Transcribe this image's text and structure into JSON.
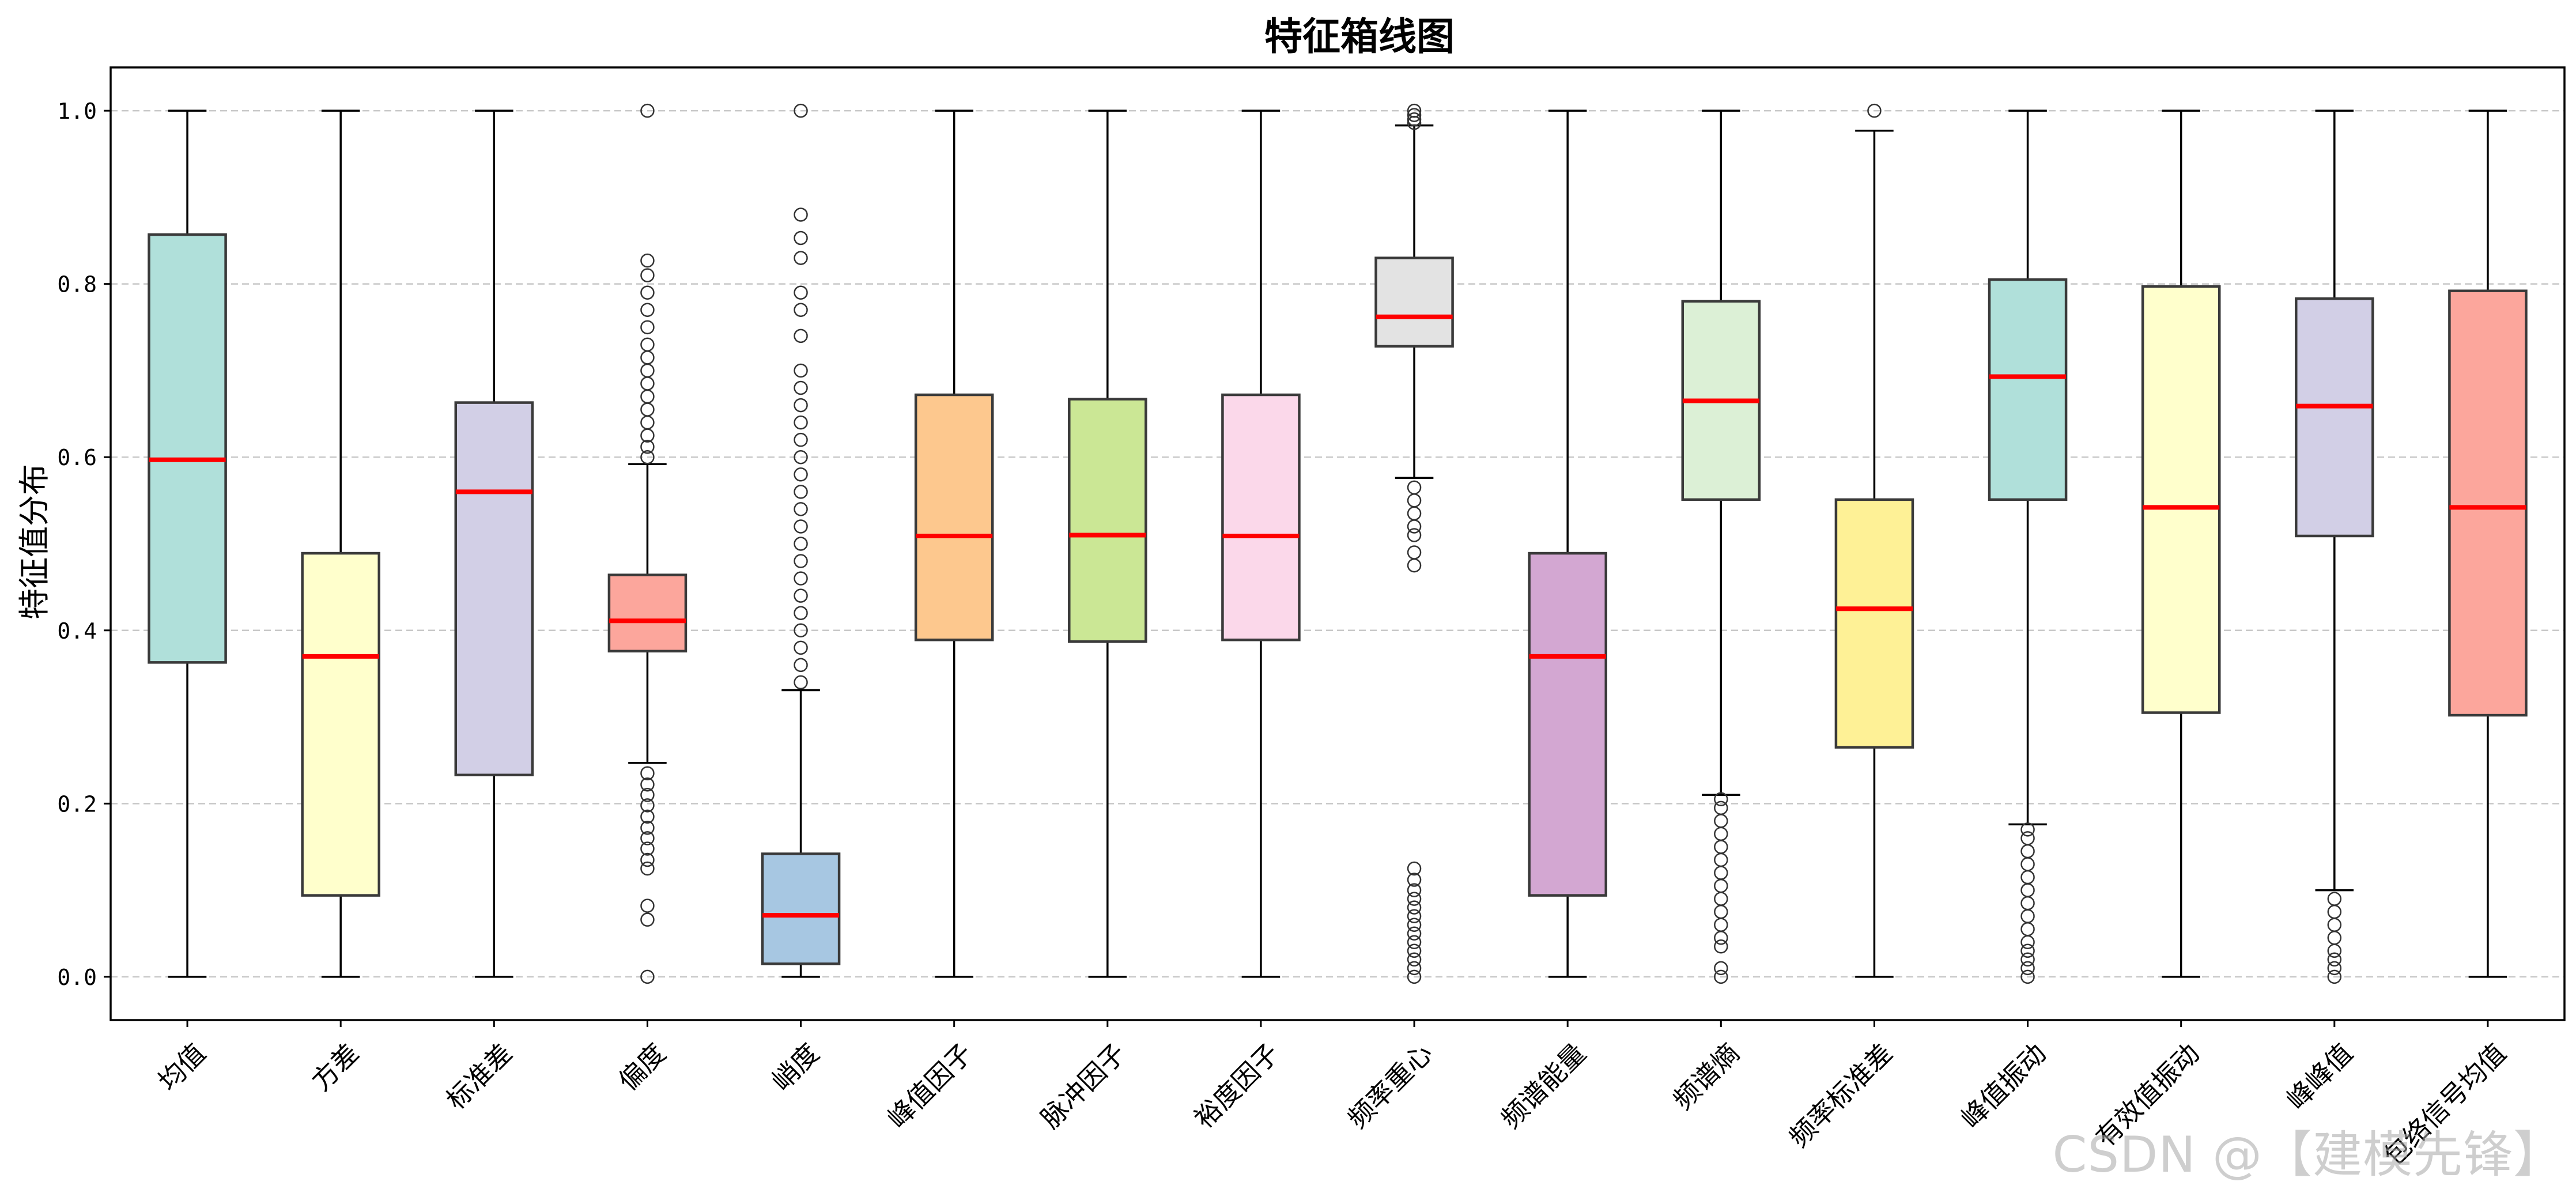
{
  "chart_data": {
    "type": "box",
    "title": "特征箱线图",
    "xlabel": "",
    "ylabel": "特征值分布",
    "ylim": [
      -0.05,
      1.05
    ],
    "yticks": [
      0.0,
      0.2,
      0.4,
      0.6,
      0.8,
      1.0
    ],
    "ytick_labels": [
      "0.0",
      "0.2",
      "0.4",
      "0.6",
      "0.8",
      "1.0"
    ],
    "grid": "horizontal dashed",
    "median_color": "#ff0000",
    "categories": [
      "均值",
      "方差",
      "标准差",
      "偏度",
      "峭度",
      "峰值因子",
      "脉冲因子",
      "裕度因子",
      "频率重心",
      "频谱能量",
      "频谱熵",
      "频率标准差",
      "峰值振动",
      "有效值振动",
      "峰峰值",
      "包络信号均值"
    ],
    "boxes": [
      {
        "name": "均值",
        "color": "#b0e0da",
        "whislo": 0.0,
        "q1": 0.363,
        "med": 0.597,
        "q3": 0.857,
        "whishi": 1.0,
        "fliers": []
      },
      {
        "name": "方差",
        "color": "#ffffcc",
        "whislo": 0.0,
        "q1": 0.094,
        "med": 0.37,
        "q3": 0.489,
        "whishi": 1.0,
        "fliers": []
      },
      {
        "name": "标准差",
        "color": "#d2cfe6",
        "whislo": 0.0,
        "q1": 0.233,
        "med": 0.56,
        "q3": 0.663,
        "whishi": 1.0,
        "fliers": []
      },
      {
        "name": "偏度",
        "color": "#fca69c",
        "whislo": 0.247,
        "q1": 0.376,
        "med": 0.411,
        "q3": 0.464,
        "whishi": 0.592,
        "fliers": [
          0.0,
          0.066,
          0.082,
          0.125,
          0.135,
          0.148,
          0.16,
          0.172,
          0.185,
          0.198,
          0.21,
          0.222,
          0.235,
          0.6,
          0.612,
          0.625,
          0.64,
          0.655,
          0.67,
          0.685,
          0.7,
          0.715,
          0.73,
          0.75,
          0.77,
          0.79,
          0.81,
          0.827,
          1.0
        ]
      },
      {
        "name": "峭度",
        "color": "#a7c7e2",
        "whislo": 0.0,
        "q1": 0.015,
        "med": 0.071,
        "q3": 0.142,
        "whishi": 0.331,
        "fliers": [
          0.34,
          0.36,
          0.38,
          0.4,
          0.42,
          0.44,
          0.46,
          0.48,
          0.5,
          0.52,
          0.54,
          0.56,
          0.58,
          0.6,
          0.62,
          0.64,
          0.66,
          0.68,
          0.7,
          0.74,
          0.77,
          0.79,
          0.83,
          0.853,
          0.88,
          1.0
        ]
      },
      {
        "name": "峰值因子",
        "color": "#fdc88e",
        "whislo": 0.0,
        "q1": 0.389,
        "med": 0.509,
        "q3": 0.672,
        "whishi": 1.0,
        "fliers": []
      },
      {
        "name": "脉冲因子",
        "color": "#cbe795",
        "whislo": 0.0,
        "q1": 0.387,
        "med": 0.51,
        "q3": 0.667,
        "whishi": 1.0,
        "fliers": []
      },
      {
        "name": "裕度因子",
        "color": "#fbd8ea",
        "whislo": 0.0,
        "q1": 0.389,
        "med": 0.509,
        "q3": 0.672,
        "whishi": 1.0,
        "fliers": []
      },
      {
        "name": "频率重心",
        "color": "#e3e3e3",
        "whislo": 0.576,
        "q1": 0.728,
        "med": 0.762,
        "q3": 0.83,
        "whishi": 0.983,
        "fliers": [
          0.0,
          0.01,
          0.02,
          0.03,
          0.04,
          0.05,
          0.06,
          0.07,
          0.08,
          0.09,
          0.1,
          0.112,
          0.125,
          0.475,
          0.49,
          0.51,
          0.52,
          0.535,
          0.55,
          0.565,
          0.986,
          0.99,
          0.995,
          1.0
        ]
      },
      {
        "name": "频谱能量",
        "color": "#d3a7d2",
        "whislo": 0.0,
        "q1": 0.094,
        "med": 0.37,
        "q3": 0.489,
        "whishi": 1.0,
        "fliers": []
      },
      {
        "name": "频谱熵",
        "color": "#dcf0d6",
        "whislo": 0.21,
        "q1": 0.551,
        "med": 0.665,
        "q3": 0.78,
        "whishi": 1.0,
        "fliers": [
          0.0,
          0.01,
          0.035,
          0.045,
          0.06,
          0.075,
          0.09,
          0.105,
          0.12,
          0.135,
          0.15,
          0.165,
          0.18,
          0.195,
          0.205
        ]
      },
      {
        "name": "频率标准差",
        "color": "#fef196",
        "whislo": 0.0,
        "q1": 0.265,
        "med": 0.425,
        "q3": 0.551,
        "whishi": 0.977,
        "fliers": [
          1.0
        ]
      },
      {
        "name": "峰值振动",
        "color": "#b0e0da",
        "whislo": 0.176,
        "q1": 0.551,
        "med": 0.693,
        "q3": 0.805,
        "whishi": 1.0,
        "fliers": [
          0.0,
          0.01,
          0.02,
          0.03,
          0.04,
          0.055,
          0.07,
          0.085,
          0.1,
          0.115,
          0.13,
          0.145,
          0.16,
          0.17
        ]
      },
      {
        "name": "有效值振动",
        "color": "#ffffcc",
        "whislo": 0.0,
        "q1": 0.305,
        "med": 0.542,
        "q3": 0.797,
        "whishi": 1.0,
        "fliers": []
      },
      {
        "name": "峰峰值",
        "color": "#d2cfe6",
        "whislo": 0.1,
        "q1": 0.509,
        "med": 0.659,
        "q3": 0.783,
        "whishi": 1.0,
        "fliers": [
          0.0,
          0.01,
          0.02,
          0.03,
          0.045,
          0.06,
          0.075,
          0.09
        ]
      },
      {
        "name": "包络信号均值",
        "color": "#fca69c",
        "whislo": 0.0,
        "q1": 0.302,
        "med": 0.542,
        "q3": 0.792,
        "whishi": 1.0,
        "fliers": []
      }
    ]
  },
  "watermark": "CSDN @【建模先锋】"
}
